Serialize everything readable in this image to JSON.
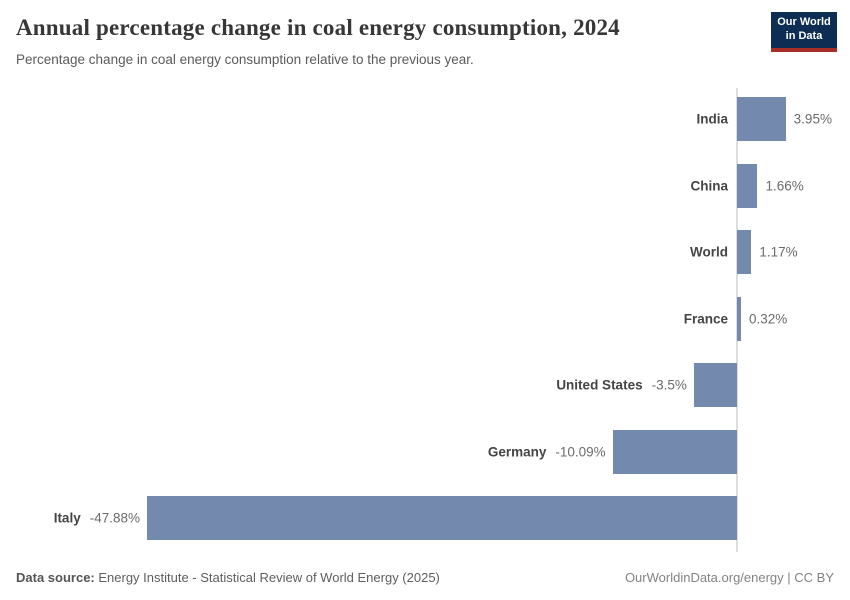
{
  "header": {
    "title": "Annual percentage change in coal energy consumption, 2024",
    "subtitle": "Percentage change in coal energy consumption relative to the previous year."
  },
  "logo": {
    "line1": "Our World",
    "line2": "in Data",
    "bg_color": "#0d2d52",
    "stripe_color": "#a82d26"
  },
  "chart_data": {
    "type": "bar",
    "orientation": "horizontal",
    "title": "Annual percentage change in coal energy consumption, 2024",
    "xlabel": "",
    "ylabel": "",
    "categories": [
      "India",
      "China",
      "World",
      "France",
      "United States",
      "Germany",
      "Italy"
    ],
    "values": [
      3.95,
      1.66,
      1.17,
      0.32,
      -3.5,
      -10.09,
      -47.88
    ],
    "value_labels": [
      "3.95%",
      "1.66%",
      "1.17%",
      "0.32%",
      "-3.5%",
      "-10.09%",
      "-47.88%"
    ],
    "xlim": [
      -47.88,
      3.95
    ],
    "unit": "%",
    "grid": false,
    "legend": false,
    "bar_color": "#7389ad",
    "axis_line_color": "#dddddd"
  },
  "footer": {
    "source_label": "Data source:",
    "source_text": " Energy Institute - Statistical Review of World Energy (2025)",
    "right_text": "OurWorldinData.org/energy | CC BY"
  }
}
